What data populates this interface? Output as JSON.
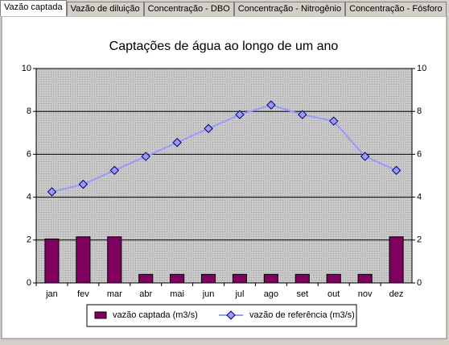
{
  "tabs": [
    "Vazão captada",
    "Vazão de diluição",
    "Concentração - DBO",
    "Concentração - Nitrogênio",
    "Concentração - Fósforo"
  ],
  "chart_data": {
    "type": "bar-line",
    "title": "Captações de água ao longo de um ano",
    "categories": [
      "jan",
      "fev",
      "mar",
      "abr",
      "mai",
      "jun",
      "jul",
      "ago",
      "set",
      "out",
      "nov",
      "dez"
    ],
    "series": [
      {
        "name": "vazão captada (m3/s)",
        "type": "bar",
        "color": "#800060",
        "values": [
          2.05,
          2.15,
          2.15,
          0.4,
          0.4,
          0.4,
          0.4,
          0.4,
          0.4,
          0.4,
          0.4,
          2.15
        ]
      },
      {
        "name": "vazão de referência (m3/s)",
        "type": "line",
        "color": "#9999ff",
        "values": [
          4.25,
          4.6,
          5.25,
          5.9,
          6.55,
          7.2,
          7.85,
          8.3,
          7.85,
          7.55,
          5.9,
          5.25
        ]
      }
    ],
    "ylim": [
      0,
      10
    ],
    "yticks": [
      0,
      2,
      4,
      6,
      8,
      10
    ],
    "y2lim": [
      0,
      10
    ],
    "y2ticks": [
      0,
      2,
      4,
      6,
      8,
      10
    ],
    "grid": true,
    "legend": "bottom"
  }
}
